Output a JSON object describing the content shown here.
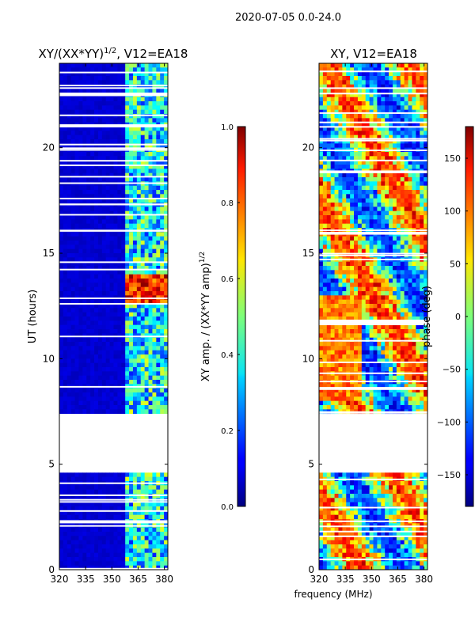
{
  "figure": {
    "suptitle": "2020-07-05 0.0-24.0",
    "xlabel_shared": "frequency (MHz)"
  },
  "chart_data": [
    {
      "type": "heatmap",
      "title_main": "XY/(XX*YY)",
      "title_sup": "1/2",
      "title_tail": ", V12=EA18",
      "xlabel": "",
      "ylabel": "UT (hours)",
      "xlim": [
        320,
        382
      ],
      "ylim": [
        0,
        24
      ],
      "xticks": [
        320,
        335,
        350,
        365,
        380
      ],
      "xtick_labels": [
        "320",
        "335",
        "350",
        "365",
        "380"
      ],
      "yticks": [
        0,
        5,
        10,
        15,
        20
      ],
      "ytick_labels": [
        "0",
        "5",
        "10",
        "15",
        "20"
      ],
      "data_gaps_hours": [
        [
          4.6,
          7.4
        ]
      ],
      "colorbar": {
        "label_main": "XY amp. / (XX*YY amp)",
        "label_sup": "1/2",
        "range": [
          0.0,
          1.0
        ],
        "ticks": [
          0.0,
          0.2,
          0.4,
          0.6,
          0.8,
          1.0
        ],
        "tick_labels": [
          "0.0",
          "0.2",
          "0.4",
          "0.6",
          "0.8",
          "1.0"
        ],
        "colormap": "jet"
      }
    },
    {
      "type": "heatmap",
      "title": "XY, V12=EA18",
      "xlabel": "frequency (MHz)",
      "ylabel": "",
      "xlim": [
        320,
        382
      ],
      "ylim": [
        0,
        24
      ],
      "xticks": [
        320,
        335,
        350,
        365,
        380
      ],
      "xtick_labels": [
        "320",
        "335",
        "350",
        "365",
        "380"
      ],
      "yticks": [
        0,
        5,
        10,
        15,
        20
      ],
      "ytick_labels": [
        "0",
        "5",
        "10",
        "15",
        "20"
      ],
      "data_gaps_hours": [
        [
          4.6,
          7.4
        ]
      ],
      "colorbar": {
        "label": "phase (deg)",
        "range": [
          -180,
          180
        ],
        "ticks": [
          -150,
          -100,
          -50,
          0,
          50,
          100,
          150
        ],
        "tick_labels": [
          "−150",
          "−100",
          "−50",
          "0",
          "50",
          "100",
          "150"
        ],
        "colormap": "jet"
      }
    }
  ]
}
